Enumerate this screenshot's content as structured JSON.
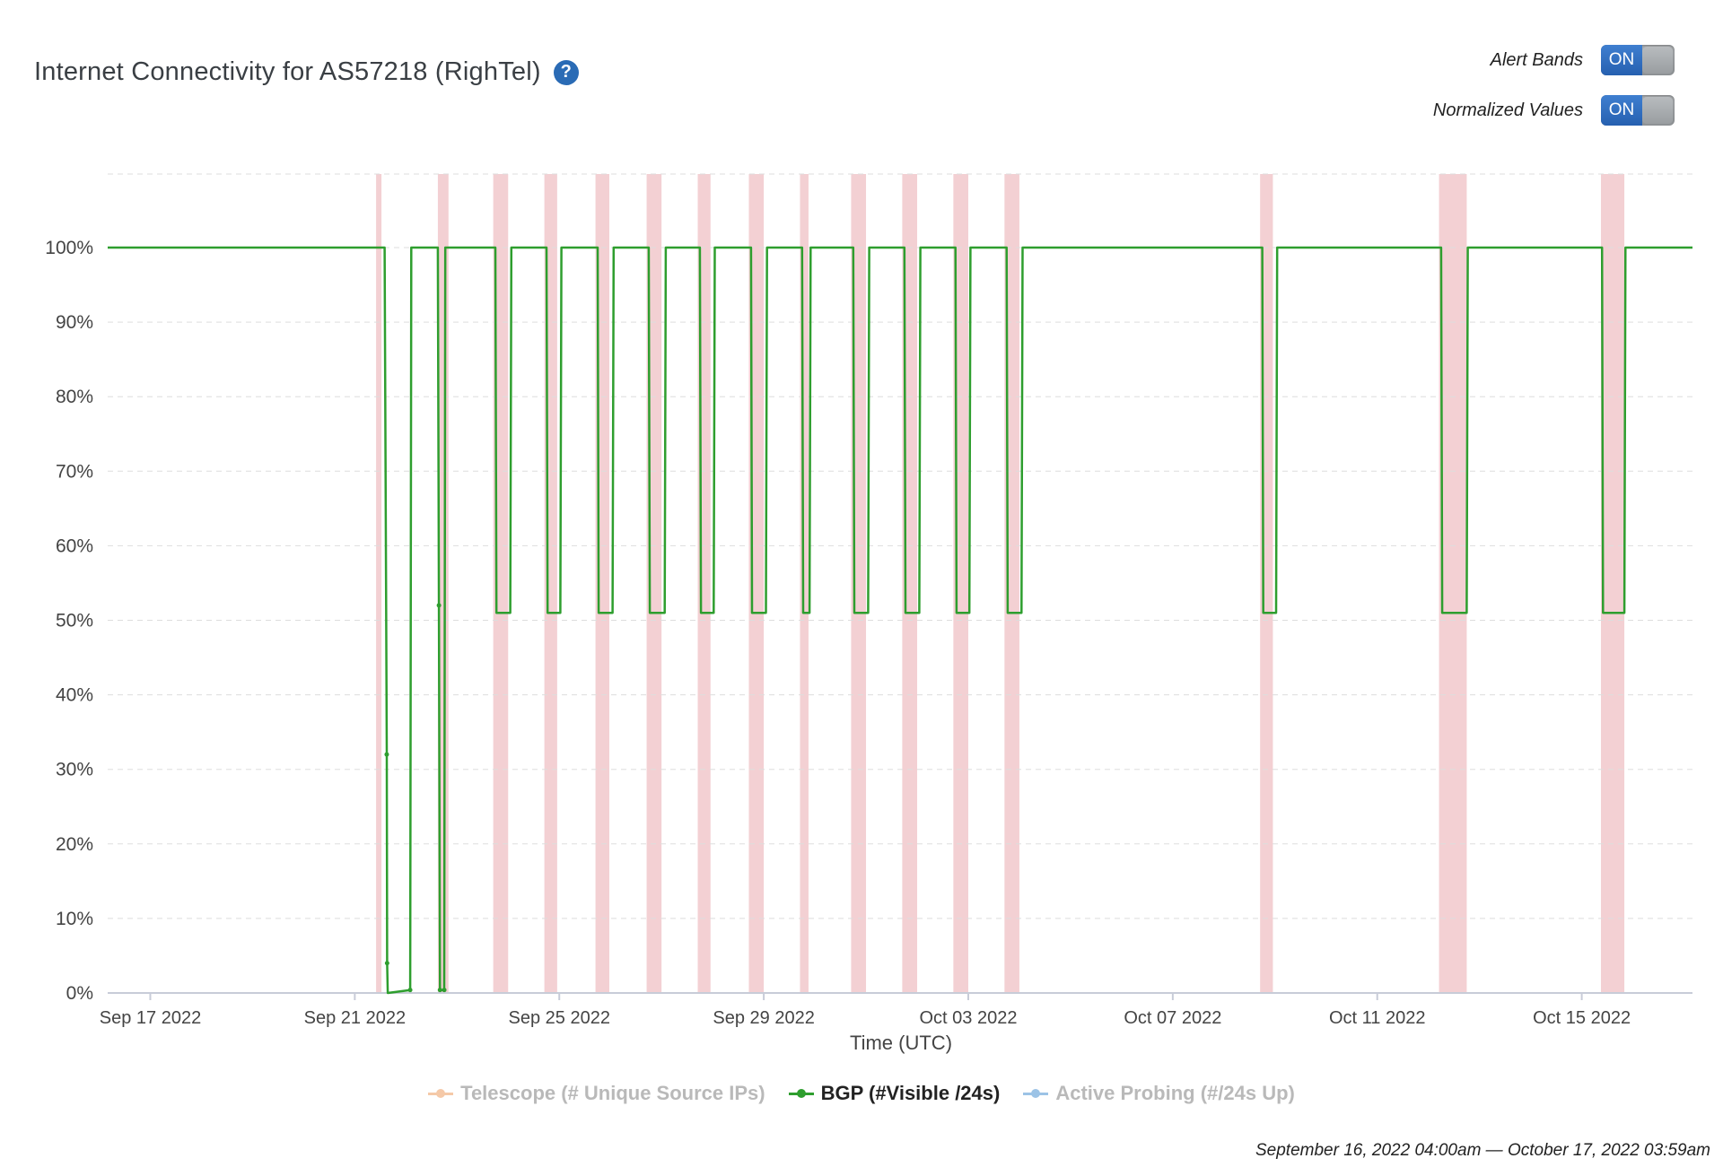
{
  "header": {
    "title": "Internet Connectivity for AS57218 (RighTel)",
    "help_icon": "?"
  },
  "toggles": [
    {
      "label": "Alert Bands",
      "state": "ON"
    },
    {
      "label": "Normalized Values",
      "state": "ON"
    }
  ],
  "legend": [
    {
      "label": "Telescope (# Unique Source IPs)",
      "color": "#f5c9a8",
      "text_color": "#b9b9b9",
      "active": false
    },
    {
      "label": "BGP (#Visible /24s)",
      "color": "#2e9e2e",
      "text_color": "#222222",
      "active": true
    },
    {
      "label": "Active Probing (#/24s Up)",
      "color": "#9cc3e6",
      "text_color": "#b9b9b9",
      "active": false
    }
  ],
  "range_text": "September 16, 2022 04:00am — October 17, 2022 03:59am",
  "chart_data": {
    "type": "line",
    "xlabel": "Time (UTC)",
    "ylabel": "",
    "x_range": [
      "2022-09-16",
      "2022-10-17"
    ],
    "ylim": [
      0,
      100
    ],
    "y_ticks": [
      0,
      10,
      20,
      30,
      40,
      50,
      60,
      70,
      80,
      90,
      100
    ],
    "y_tick_labels": [
      "0%",
      "10%",
      "20%",
      "30%",
      "40%",
      "50%",
      "60%",
      "70%",
      "80%",
      "90%",
      "100%"
    ],
    "x_ticks": [
      "2022-09-17",
      "2022-09-21",
      "2022-09-25",
      "2022-09-29",
      "2022-10-03",
      "2022-10-07",
      "2022-10-11",
      "2022-10-15"
    ],
    "x_tick_labels": [
      "Sep 17 2022",
      "Sep 21 2022",
      "Sep 25 2022",
      "Sep 29 2022",
      "Oct 03 2022",
      "Oct 07 2022",
      "Oct 11 2022",
      "Oct 15 2022"
    ],
    "grid": true,
    "legend_position": "bottom",
    "alert_band_color": "#f3d0d3",
    "alert_bands": [
      [
        "2022-09-21 10:00",
        "2022-09-21 12:00"
      ],
      [
        "2022-09-22 15:00",
        "2022-09-22 20:00"
      ],
      [
        "2022-09-23 17:00",
        "2022-09-24 00:00"
      ],
      [
        "2022-09-24 17:00",
        "2022-09-24 23:00"
      ],
      [
        "2022-09-25 17:00",
        "2022-09-25 23:30"
      ],
      [
        "2022-09-26 17:00",
        "2022-09-27 00:00"
      ],
      [
        "2022-09-27 17:00",
        "2022-09-27 23:00"
      ],
      [
        "2022-09-28 17:00",
        "2022-09-29 00:00"
      ],
      [
        "2022-09-29 17:00",
        "2022-09-29 21:00"
      ],
      [
        "2022-09-30 17:00",
        "2022-10-01 00:00"
      ],
      [
        "2022-10-01 17:00",
        "2022-10-02 00:00"
      ],
      [
        "2022-10-02 17:00",
        "2022-10-03 00:00"
      ],
      [
        "2022-10-03 17:00",
        "2022-10-04 00:00"
      ],
      [
        "2022-10-08 17:00",
        "2022-10-08 23:00"
      ],
      [
        "2022-10-12 05:00",
        "2022-10-12 18:00"
      ],
      [
        "2022-10-15 09:00",
        "2022-10-15 20:00"
      ]
    ],
    "series": [
      {
        "name": "BGP (#Visible /24s)",
        "color": "#2e9e2e",
        "points": [
          [
            "2022-09-16 04:00",
            100
          ],
          [
            "2022-09-21 14:00",
            100
          ],
          [
            "2022-09-21 15:00",
            32
          ],
          [
            "2022-09-21 15:10",
            4
          ],
          [
            "2022-09-21 15:30",
            0
          ],
          [
            "2022-09-22 02:00",
            0.4
          ],
          [
            "2022-09-22 02:30",
            100
          ],
          [
            "2022-09-22 15:00",
            100
          ],
          [
            "2022-09-22 15:30",
            52
          ],
          [
            "2022-09-22 16:00",
            0.4
          ],
          [
            "2022-09-22 18:00",
            0.4
          ],
          [
            "2022-09-22 18:30",
            100
          ],
          [
            "2022-09-23 18:00",
            100
          ],
          [
            "2022-09-23 18:30",
            51
          ],
          [
            "2022-09-24 01:00",
            51
          ],
          [
            "2022-09-24 01:30",
            100
          ],
          [
            "2022-09-24 18:00",
            100
          ],
          [
            "2022-09-24 18:30",
            51
          ],
          [
            "2022-09-25 00:30",
            51
          ],
          [
            "2022-09-25 01:00",
            100
          ],
          [
            "2022-09-25 18:00",
            100
          ],
          [
            "2022-09-25 18:30",
            51
          ],
          [
            "2022-09-26 01:00",
            51
          ],
          [
            "2022-09-26 01:30",
            100
          ],
          [
            "2022-09-26 18:00",
            100
          ],
          [
            "2022-09-26 18:30",
            51
          ],
          [
            "2022-09-27 01:30",
            51
          ],
          [
            "2022-09-27 02:00",
            100
          ],
          [
            "2022-09-27 18:00",
            100
          ],
          [
            "2022-09-27 18:30",
            51
          ],
          [
            "2022-09-28 00:30",
            51
          ],
          [
            "2022-09-28 01:00",
            100
          ],
          [
            "2022-09-28 18:00",
            100
          ],
          [
            "2022-09-28 18:30",
            51
          ],
          [
            "2022-09-29 01:00",
            51
          ],
          [
            "2022-09-29 01:30",
            100
          ],
          [
            "2022-09-29 18:00",
            100
          ],
          [
            "2022-09-29 18:30",
            51
          ],
          [
            "2022-09-29 21:30",
            51
          ],
          [
            "2022-09-29 22:00",
            100
          ],
          [
            "2022-09-30 18:00",
            100
          ],
          [
            "2022-09-30 18:30",
            51
          ],
          [
            "2022-10-01 01:00",
            51
          ],
          [
            "2022-10-01 01:30",
            100
          ],
          [
            "2022-10-01 18:00",
            100
          ],
          [
            "2022-10-01 18:30",
            51
          ],
          [
            "2022-10-02 01:00",
            51
          ],
          [
            "2022-10-02 01:30",
            100
          ],
          [
            "2022-10-02 18:00",
            100
          ],
          [
            "2022-10-02 18:30",
            51
          ],
          [
            "2022-10-03 00:30",
            51
          ],
          [
            "2022-10-03 01:00",
            100
          ],
          [
            "2022-10-03 18:00",
            100
          ],
          [
            "2022-10-03 18:30",
            51
          ],
          [
            "2022-10-04 01:00",
            51
          ],
          [
            "2022-10-04 01:30",
            100
          ],
          [
            "2022-10-08 18:00",
            100
          ],
          [
            "2022-10-08 18:30",
            51
          ],
          [
            "2022-10-09 00:30",
            51
          ],
          [
            "2022-10-09 01:00",
            100
          ],
          [
            "2022-10-12 06:00",
            100
          ],
          [
            "2022-10-12 06:30",
            51
          ],
          [
            "2022-10-12 18:00",
            51
          ],
          [
            "2022-10-12 18:30",
            100
          ],
          [
            "2022-10-15 09:30",
            100
          ],
          [
            "2022-10-15 10:00",
            51
          ],
          [
            "2022-10-15 20:00",
            51
          ],
          [
            "2022-10-15 20:30",
            100
          ],
          [
            "2022-10-17 03:59",
            100
          ]
        ]
      }
    ]
  }
}
